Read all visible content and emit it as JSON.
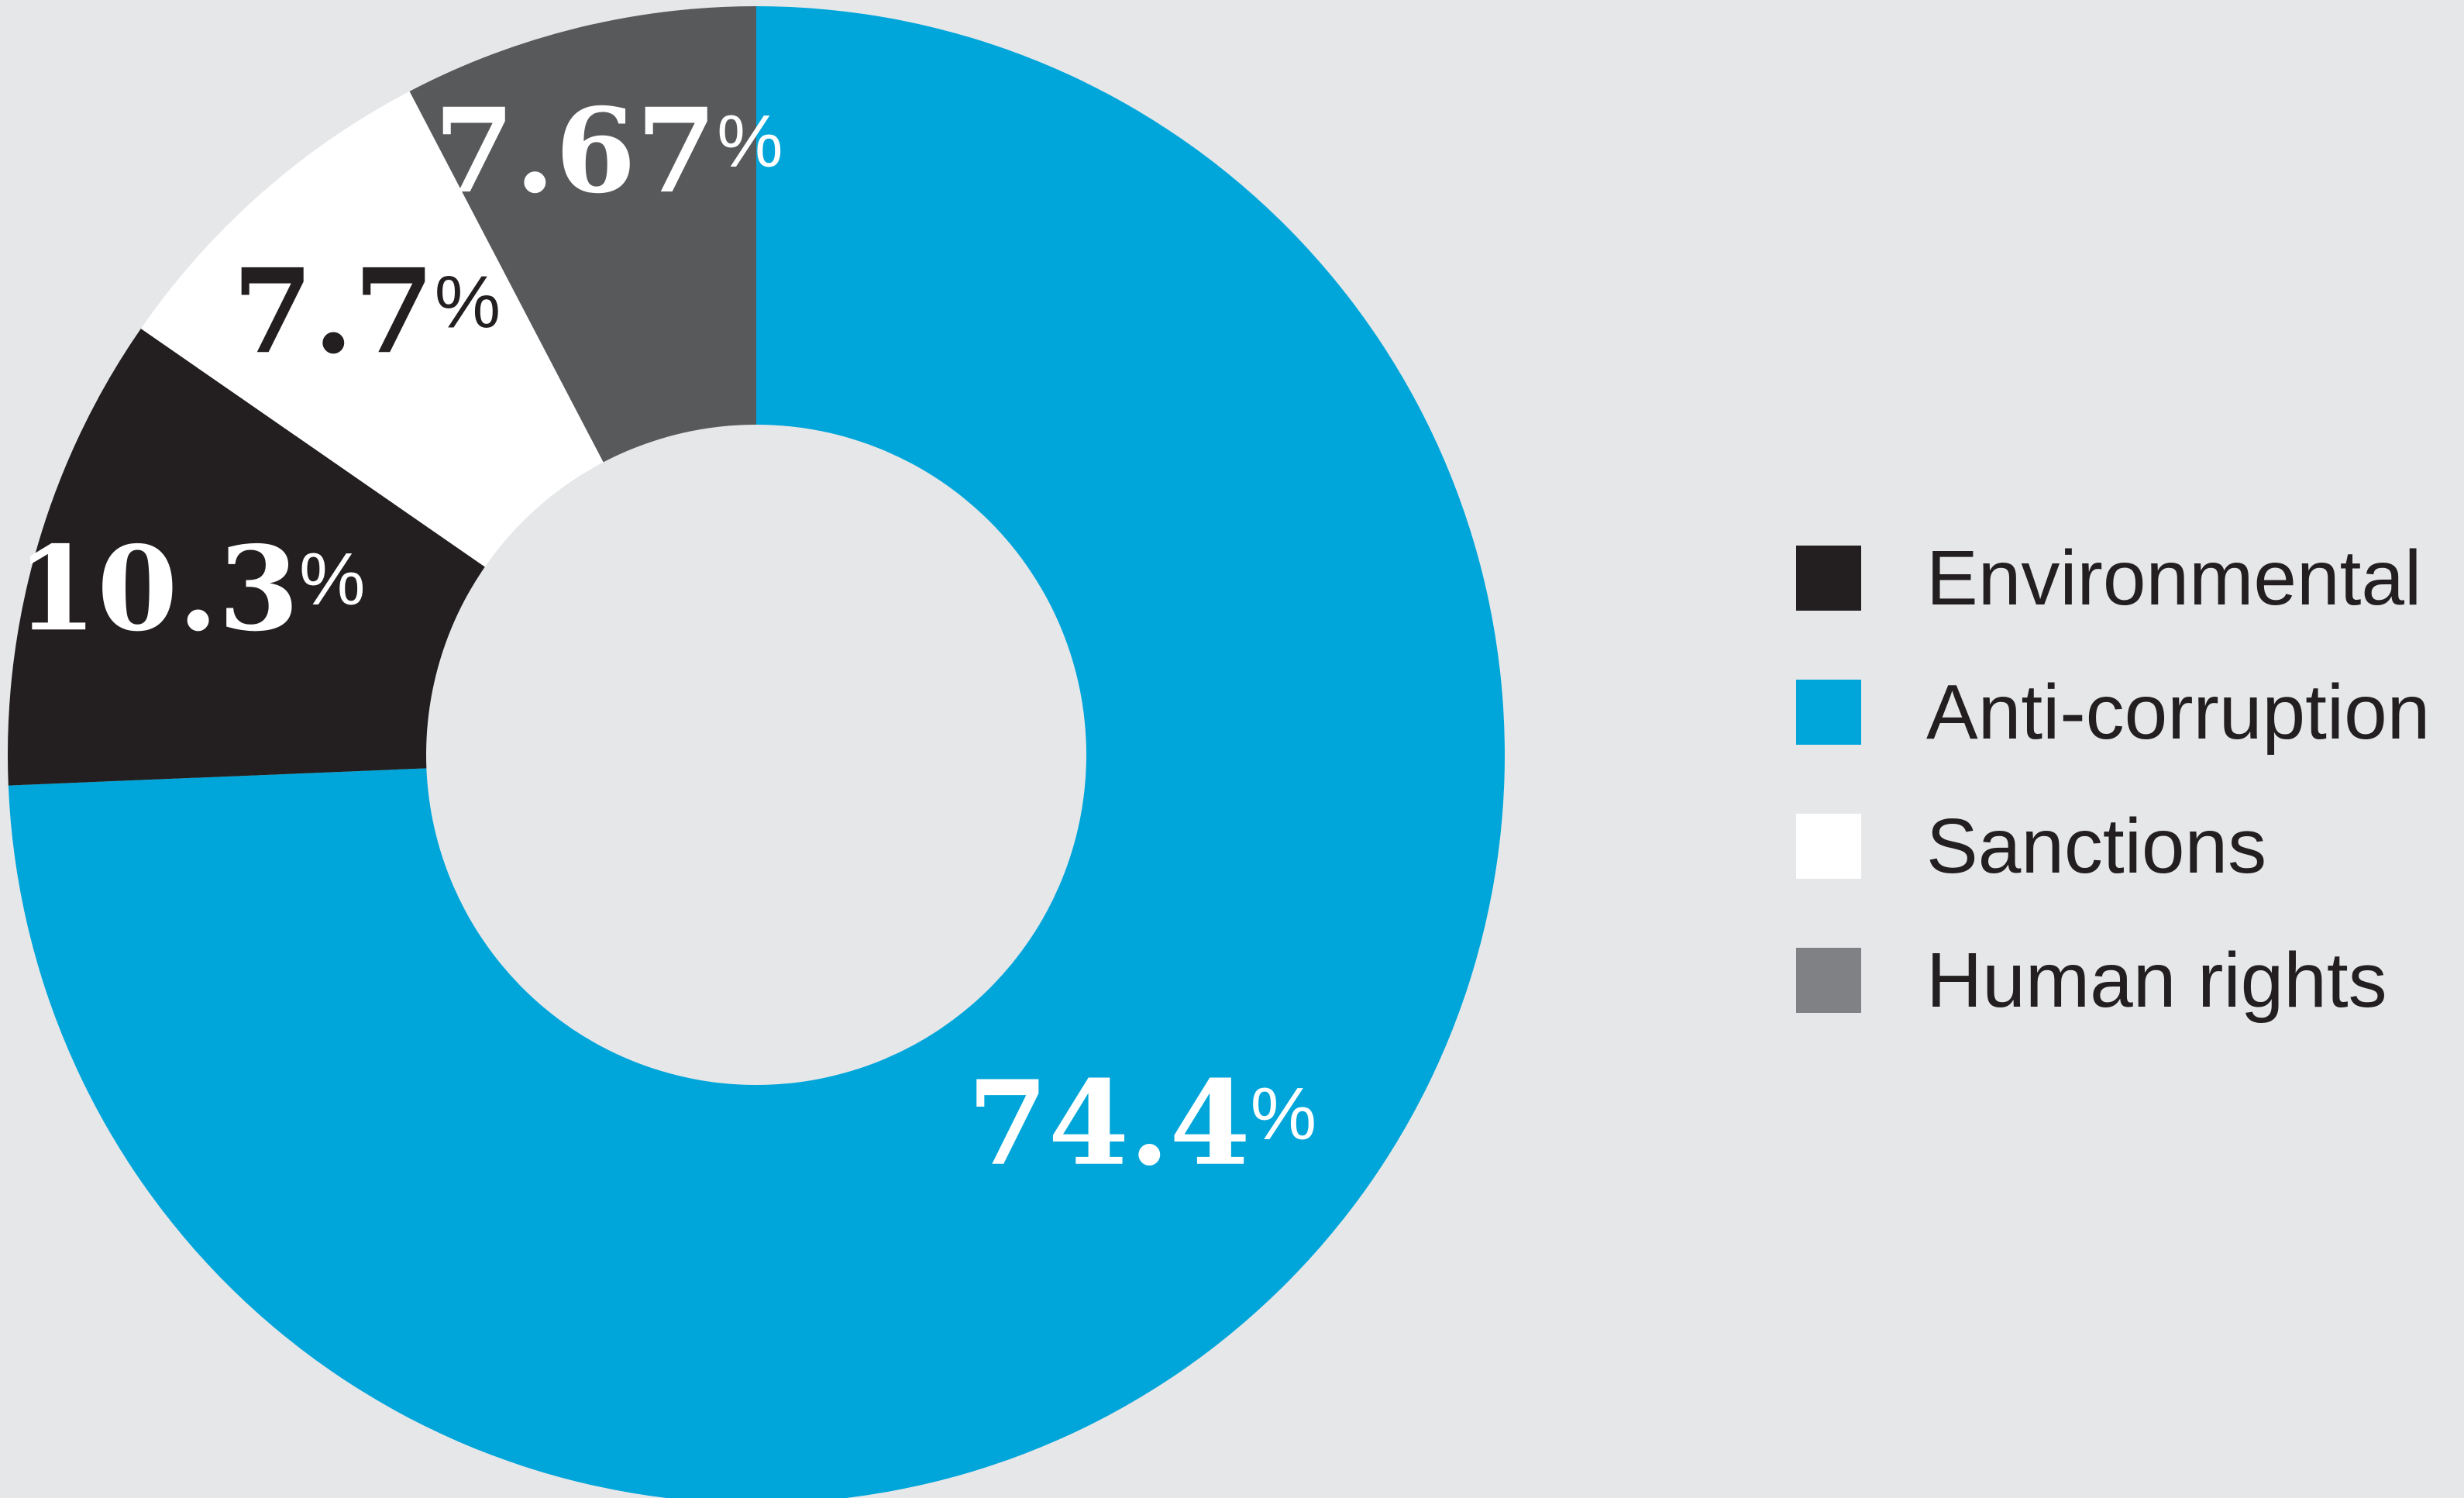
{
  "chart_data": {
    "type": "pie",
    "style": "donut",
    "title": "",
    "categories": [
      "Environmental",
      "Anti-corruption",
      "Sanctions",
      "Human rights"
    ],
    "values": [
      10.3,
      74.4,
      7.7,
      7.67
    ],
    "value_labels": [
      "10.3",
      "74.4",
      "7.7",
      "7.67"
    ],
    "value_suffix": "%",
    "colors": [
      "#231f20",
      "#00a6da",
      "#ffffff",
      "#58595b"
    ],
    "legend_colors": [
      "#231f20",
      "#00a6da",
      "#ffffff",
      "#808184"
    ],
    "label_colors": [
      "#ffffff",
      "#ffffff",
      "#231f20",
      "#ffffff"
    ],
    "legend_position": "right"
  }
}
